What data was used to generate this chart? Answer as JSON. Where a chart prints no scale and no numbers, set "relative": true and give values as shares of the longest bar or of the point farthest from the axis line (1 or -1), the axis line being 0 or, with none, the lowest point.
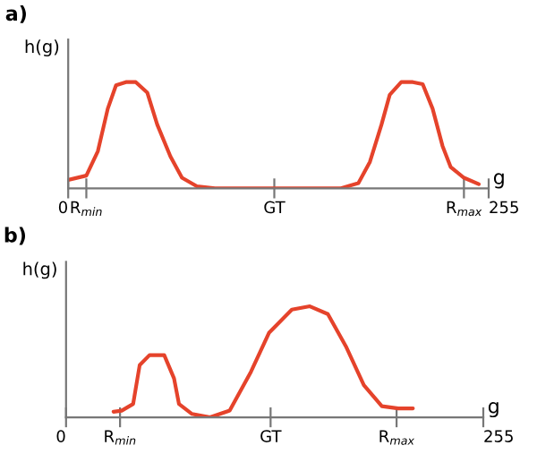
{
  "chart_data": [
    {
      "type": "line",
      "title": "a)",
      "xlabel": "g",
      "ylabel": "h(g)",
      "relative": true,
      "xlim": [
        0,
        255
      ],
      "xticks": [
        {
          "value": 0,
          "label": "0"
        },
        {
          "value": 11,
          "label": "R$_{min}$"
        },
        {
          "value": 125,
          "label": "GT"
        },
        {
          "value": 240,
          "label": "R$_{max}$"
        },
        {
          "value": 255,
          "label": "255"
        }
      ],
      "series": [
        {
          "color": "#e5432b",
          "x": [
            0,
            11,
            18,
            24,
            29,
            35,
            41,
            48,
            54,
            62,
            69,
            78,
            89,
            165,
            176,
            183,
            190,
            195,
            202,
            209,
            215,
            221,
            227,
            232,
            240,
            249
          ],
          "values": [
            0.08,
            0.12,
            0.35,
            0.75,
            0.97,
            1.0,
            1.0,
            0.9,
            0.6,
            0.3,
            0.1,
            0.02,
            0,
            0,
            0.05,
            0.25,
            0.6,
            0.88,
            1.0,
            1.0,
            0.98,
            0.75,
            0.4,
            0.2,
            0.1,
            0.04
          ]
        }
      ]
    },
    {
      "type": "line",
      "title": "b)",
      "xlabel": "g",
      "ylabel": "h(g)",
      "relative": true,
      "xlim": [
        0,
        255
      ],
      "xticks": [
        {
          "value": 0,
          "label": "0"
        },
        {
          "value": 33,
          "label": "R$_{min}$"
        },
        {
          "value": 125,
          "label": "GT"
        },
        {
          "value": 202,
          "label": "R$_{max}$"
        },
        {
          "value": 255,
          "label": "255"
        }
      ],
      "series": [
        {
          "color": "#e5432b",
          "x": [
            29,
            34,
            41,
            45,
            51,
            60,
            66,
            69,
            77,
            88,
            100,
            113,
            124,
            138,
            149,
            160,
            171,
            182,
            193,
            203,
            212
          ],
          "values": [
            0.05,
            0.06,
            0.12,
            0.47,
            0.56,
            0.56,
            0.35,
            0.12,
            0.03,
            0,
            0.06,
            0.41,
            0.76,
            0.97,
            1.0,
            0.93,
            0.64,
            0.29,
            0.1,
            0.08,
            0.08
          ]
        }
      ]
    }
  ]
}
